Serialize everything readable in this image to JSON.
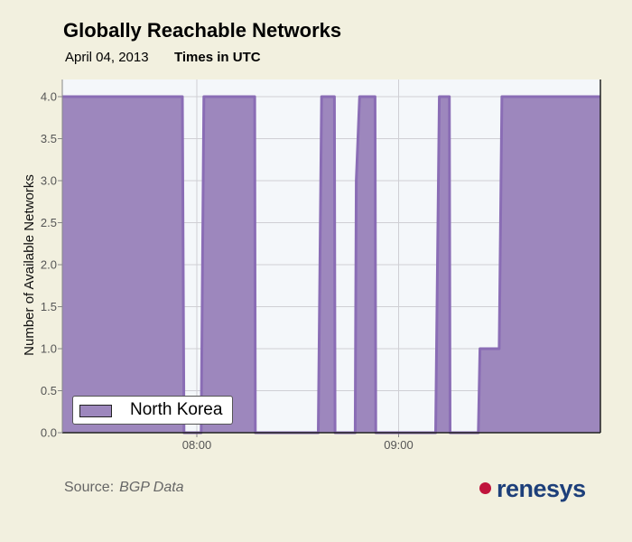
{
  "header": {
    "title": "Globally Reachable Networks",
    "date": "April 04, 2013",
    "timezone": "Times in UTC"
  },
  "footer": {
    "source_label": "Source:",
    "source_value": "BGP Data",
    "logo_text": "renesys"
  },
  "colors": {
    "fill": "#9d87bd",
    "line": "#8a6db5",
    "plot_bg": "#f4f7fa",
    "grid": "#cfcfd4",
    "logo_dot": "#c0143c",
    "logo_text": "#1d3f7a"
  },
  "chart_data": {
    "type": "area",
    "title": "Globally Reachable Networks",
    "xlabel": "",
    "ylabel": "Number of Available Networks",
    "x_units": "minutes after 07:00 UTC",
    "xlim": [
      20,
      180
    ],
    "ylim": [
      0,
      4
    ],
    "yticks": [
      0,
      0.5,
      1,
      1.5,
      2,
      2.5,
      3,
      3.5,
      4
    ],
    "ytick_labels": [
      "0.0",
      "0.5",
      "1.0",
      "1.5",
      "2.0",
      "2.5",
      "3.0",
      "3.5",
      "4.0"
    ],
    "xticks": [
      60,
      120
    ],
    "xtick_labels": [
      "08:00",
      "09:00"
    ],
    "grid": true,
    "legend": {
      "position": "bottom-left",
      "entries": [
        "North Korea"
      ]
    },
    "series": [
      {
        "name": "North Korea",
        "points": [
          [
            20,
            4
          ],
          [
            55.7,
            4
          ],
          [
            56.2,
            0
          ],
          [
            61.3,
            0
          ],
          [
            62.1,
            4
          ],
          [
            77.2,
            4
          ],
          [
            77.4,
            0
          ],
          [
            96.1,
            0
          ],
          [
            97.1,
            4
          ],
          [
            100.9,
            4
          ],
          [
            101.1,
            0
          ],
          [
            107.1,
            0
          ],
          [
            107.4,
            3
          ],
          [
            108.4,
            4
          ],
          [
            113,
            4
          ],
          [
            113.2,
            0
          ],
          [
            131,
            0
          ],
          [
            132.1,
            4
          ],
          [
            135.1,
            4
          ],
          [
            135.3,
            0
          ],
          [
            143.7,
            0
          ],
          [
            144.2,
            1
          ],
          [
            149.9,
            1
          ],
          [
            150.7,
            4
          ],
          [
            180,
            4
          ]
        ]
      }
    ]
  }
}
